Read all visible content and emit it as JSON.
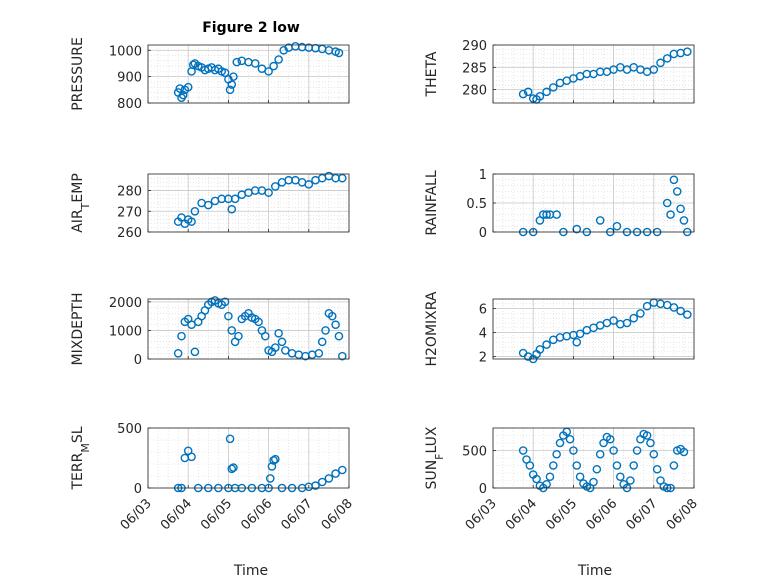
{
  "figure": {
    "title": "Figure 2 low",
    "xlabel": "Time",
    "x_ticks": [
      "06/03",
      "06/04",
      "06/05",
      "06/06",
      "06/07",
      "06/08"
    ],
    "marker_color": "#0072BD",
    "marker": "circle"
  },
  "chart_data": [
    {
      "type": "scatter",
      "ylabel": "PRESSURE",
      "ylim": [
        800,
        1020
      ],
      "yticks": [
        800,
        900,
        1000
      ],
      "grid": true,
      "x": [
        "06/03 18:00",
        "06/03 19:00",
        "06/03 20:00",
        "06/03 21:00",
        "06/03 22:00",
        "06/04 00:00",
        "06/04 02:00",
        "06/04 03:00",
        "06/04 04:00",
        "06/04 06:00",
        "06/04 08:00",
        "06/04 10:00",
        "06/04 12:00",
        "06/04 14:00",
        "06/04 16:00",
        "06/04 18:00",
        "06/04 20:00",
        "06/04 22:00",
        "06/05 00:00",
        "06/05 01:00",
        "06/05 02:00",
        "06/05 03:00",
        "06/05 05:00",
        "06/05 08:00",
        "06/05 12:00",
        "06/05 16:00",
        "06/05 20:00",
        "06/06 00:00",
        "06/06 03:00",
        "06/06 06:00",
        "06/06 09:00",
        "06/06 12:00",
        "06/06 16:00",
        "06/06 20:00",
        "06/07 00:00",
        "06/07 04:00",
        "06/07 08:00",
        "06/07 12:00",
        "06/07 16:00",
        "06/07 18:00"
      ],
      "y": [
        840,
        855,
        820,
        830,
        850,
        860,
        920,
        945,
        950,
        940,
        935,
        925,
        930,
        935,
        925,
        930,
        920,
        915,
        890,
        850,
        870,
        900,
        955,
        960,
        955,
        950,
        930,
        920,
        940,
        965,
        1000,
        1010,
        1015,
        1012,
        1010,
        1008,
        1005,
        1000,
        995,
        990
      ]
    },
    {
      "type": "scatter",
      "ylabel": "THETA",
      "ylim": [
        277,
        290
      ],
      "yticks": [
        280,
        285,
        290
      ],
      "grid": true,
      "x": [
        "06/03 18:00",
        "06/03 21:00",
        "06/04 00:00",
        "06/04 02:00",
        "06/04 04:00",
        "06/04 08:00",
        "06/04 12:00",
        "06/04 16:00",
        "06/04 20:00",
        "06/05 00:00",
        "06/05 04:00",
        "06/05 08:00",
        "06/05 12:00",
        "06/05 16:00",
        "06/05 20:00",
        "06/06 00:00",
        "06/06 04:00",
        "06/06 08:00",
        "06/06 12:00",
        "06/06 16:00",
        "06/06 20:00",
        "06/07 00:00",
        "06/07 04:00",
        "06/07 08:00",
        "06/07 12:00",
        "06/07 16:00",
        "06/07 20:00"
      ],
      "y": [
        279,
        279.5,
        278,
        277.8,
        278.5,
        279.5,
        280.5,
        281.5,
        282,
        282.5,
        283,
        283.5,
        283.5,
        284,
        284,
        284.5,
        285,
        284.5,
        285,
        284.5,
        284,
        284.5,
        286,
        287,
        288,
        288.2,
        288.5
      ]
    },
    {
      "type": "scatter",
      "ylabel": "AIR_TEMP",
      "ylim": [
        260,
        288
      ],
      "yticks": [
        260,
        270,
        280
      ],
      "grid": true,
      "x": [
        "06/03 18:00",
        "06/03 20:00",
        "06/03 22:00",
        "06/04 00:00",
        "06/04 02:00",
        "06/04 04:00",
        "06/04 08:00",
        "06/04 12:00",
        "06/04 16:00",
        "06/04 20:00",
        "06/05 00:00",
        "06/05 02:00",
        "06/05 04:00",
        "06/05 08:00",
        "06/05 12:00",
        "06/05 16:00",
        "06/05 20:00",
        "06/06 00:00",
        "06/06 04:00",
        "06/06 08:00",
        "06/06 12:00",
        "06/06 16:00",
        "06/06 20:00",
        "06/07 00:00",
        "06/07 04:00",
        "06/07 08:00",
        "06/07 12:00",
        "06/07 16:00",
        "06/07 20:00"
      ],
      "y": [
        265,
        267,
        264,
        266,
        265,
        270,
        274,
        273,
        275,
        276,
        276,
        271,
        276,
        278,
        279,
        280,
        280,
        279,
        282,
        284,
        285,
        285,
        284,
        283,
        285,
        286,
        287,
        286,
        286
      ]
    },
    {
      "type": "scatter",
      "ylabel": "RAINFALL",
      "ylim": [
        0,
        1
      ],
      "yticks": [
        0,
        0.5,
        1
      ],
      "grid": true,
      "x": [
        "06/03 18:00",
        "06/04 00:00",
        "06/04 04:00",
        "06/04 06:00",
        "06/04 08:00",
        "06/04 10:00",
        "06/04 14:00",
        "06/04 18:00",
        "06/05 02:00",
        "06/05 08:00",
        "06/05 16:00",
        "06/05 22:00",
        "06/06 02:00",
        "06/06 08:00",
        "06/06 14:00",
        "06/06 20:00",
        "06/07 02:00",
        "06/07 08:00",
        "06/07 10:00",
        "06/07 12:00",
        "06/07 14:00",
        "06/07 16:00",
        "06/07 18:00",
        "06/07 20:00"
      ],
      "y": [
        0,
        0,
        0.2,
        0.3,
        0.3,
        0.3,
        0.3,
        0,
        0.05,
        0,
        0.2,
        0,
        0.1,
        0,
        0,
        0,
        0,
        0.5,
        0.3,
        0.9,
        0.7,
        0.4,
        0.2,
        0
      ]
    },
    {
      "type": "scatter",
      "ylabel": "MIXDEPTH",
      "ylim": [
        0,
        2100
      ],
      "yticks": [
        0,
        1000,
        2000
      ],
      "grid": true,
      "x": [
        "06/03 18:00",
        "06/03 20:00",
        "06/03 22:00",
        "06/04 00:00",
        "06/04 02:00",
        "06/04 04:00",
        "06/04 06:00",
        "06/04 08:00",
        "06/04 10:00",
        "06/04 12:00",
        "06/04 14:00",
        "06/04 16:00",
        "06/04 18:00",
        "06/04 20:00",
        "06/04 22:00",
        "06/05 00:00",
        "06/05 02:00",
        "06/05 04:00",
        "06/05 06:00",
        "06/05 08:00",
        "06/05 10:00",
        "06/05 12:00",
        "06/05 14:00",
        "06/05 16:00",
        "06/05 18:00",
        "06/05 20:00",
        "06/05 22:00",
        "06/06 00:00",
        "06/06 02:00",
        "06/06 04:00",
        "06/06 06:00",
        "06/06 08:00",
        "06/06 10:00",
        "06/06 14:00",
        "06/06 18:00",
        "06/06 22:00",
        "06/07 02:00",
        "06/07 06:00",
        "06/07 08:00",
        "06/07 10:00",
        "06/07 12:00",
        "06/07 14:00",
        "06/07 16:00",
        "06/07 18:00",
        "06/07 20:00"
      ],
      "y": [
        200,
        800,
        1300,
        1400,
        1200,
        250,
        1300,
        1500,
        1700,
        1900,
        2000,
        2050,
        1950,
        1900,
        2000,
        1500,
        1000,
        600,
        800,
        1400,
        1500,
        1600,
        1450,
        1400,
        1300,
        1000,
        800,
        300,
        250,
        400,
        900,
        600,
        300,
        200,
        150,
        100,
        150,
        200,
        600,
        1000,
        1600,
        1500,
        1200,
        800,
        100
      ]
    },
    {
      "type": "scatter",
      "ylabel": "H2OMIXRA",
      "ylim": [
        1.8,
        6.8
      ],
      "yticks": [
        2,
        4,
        6
      ],
      "grid": true,
      "x": [
        "06/03 18:00",
        "06/03 21:00",
        "06/04 00:00",
        "06/04 02:00",
        "06/04 04:00",
        "06/04 08:00",
        "06/04 12:00",
        "06/04 16:00",
        "06/04 20:00",
        "06/05 00:00",
        "06/05 02:00",
        "06/05 04:00",
        "06/05 08:00",
        "06/05 12:00",
        "06/05 16:00",
        "06/05 20:00",
        "06/06 00:00",
        "06/06 04:00",
        "06/06 08:00",
        "06/06 12:00",
        "06/06 16:00",
        "06/06 20:00",
        "06/07 00:00",
        "06/07 04:00",
        "06/07 08:00",
        "06/07 12:00",
        "06/07 16:00",
        "06/07 20:00"
      ],
      "y": [
        2.3,
        2.0,
        1.8,
        2.2,
        2.6,
        3.0,
        3.4,
        3.6,
        3.7,
        3.8,
        3.2,
        3.9,
        4.2,
        4.4,
        4.6,
        4.8,
        5.0,
        4.7,
        4.8,
        5.2,
        5.6,
        6.2,
        6.5,
        6.4,
        6.3,
        6.1,
        5.8,
        5.5
      ]
    },
    {
      "type": "scatter",
      "ylabel": "TERR_MSL",
      "ylim": [
        0,
        500
      ],
      "yticks": [
        0,
        500
      ],
      "grid": true,
      "x": [
        "06/03 18:00",
        "06/03 20:00",
        "06/03 22:00",
        "06/04 00:00",
        "06/04 02:00",
        "06/04 06:00",
        "06/04 12:00",
        "06/04 18:00",
        "06/05 00:00",
        "06/05 01:00",
        "06/05 02:00",
        "06/05 03:00",
        "06/05 04:00",
        "06/05 08:00",
        "06/05 14:00",
        "06/05 20:00",
        "06/06 00:00",
        "06/06 01:00",
        "06/06 02:00",
        "06/06 03:00",
        "06/06 04:00",
        "06/06 08:00",
        "06/06 14:00",
        "06/06 20:00",
        "06/07 00:00",
        "06/07 04:00",
        "06/07 08:00",
        "06/07 12:00",
        "06/07 16:00",
        "06/07 20:00"
      ],
      "y": [
        0,
        0,
        250,
        310,
        260,
        0,
        0,
        0,
        0,
        410,
        160,
        170,
        0,
        0,
        0,
        0,
        0,
        80,
        180,
        230,
        240,
        0,
        0,
        0,
        10,
        20,
        50,
        80,
        120,
        150
      ]
    },
    {
      "type": "scatter",
      "ylabel": "SUN_FLUX",
      "ylim": [
        0,
        800
      ],
      "yticks": [
        0,
        500
      ],
      "grid": true,
      "x": [
        "06/03 18:00",
        "06/03 20:00",
        "06/03 22:00",
        "06/04 00:00",
        "06/04 02:00",
        "06/04 04:00",
        "06/04 06:00",
        "06/04 08:00",
        "06/04 10:00",
        "06/04 12:00",
        "06/04 14:00",
        "06/04 16:00",
        "06/04 18:00",
        "06/04 20:00",
        "06/04 22:00",
        "06/05 00:00",
        "06/05 02:00",
        "06/05 04:00",
        "06/05 06:00",
        "06/05 08:00",
        "06/05 10:00",
        "06/05 12:00",
        "06/05 14:00",
        "06/05 16:00",
        "06/05 18:00",
        "06/05 20:00",
        "06/05 22:00",
        "06/06 00:00",
        "06/06 02:00",
        "06/06 04:00",
        "06/06 06:00",
        "06/06 08:00",
        "06/06 10:00",
        "06/06 12:00",
        "06/06 14:00",
        "06/06 16:00",
        "06/06 18:00",
        "06/06 20:00",
        "06/06 22:00",
        "06/07 00:00",
        "06/07 02:00",
        "06/07 04:00",
        "06/07 06:00",
        "06/07 08:00",
        "06/07 10:00",
        "06/07 12:00",
        "06/07 14:00",
        "06/07 16:00",
        "06/07 18:00"
      ],
      "y": [
        500,
        380,
        300,
        180,
        120,
        30,
        0,
        50,
        150,
        300,
        450,
        600,
        700,
        750,
        650,
        500,
        300,
        150,
        60,
        20,
        0,
        80,
        250,
        450,
        600,
        680,
        650,
        500,
        300,
        150,
        50,
        0,
        100,
        300,
        500,
        650,
        720,
        700,
        600,
        450,
        250,
        100,
        20,
        0,
        0,
        300,
        500,
        520,
        480
      ]
    }
  ]
}
